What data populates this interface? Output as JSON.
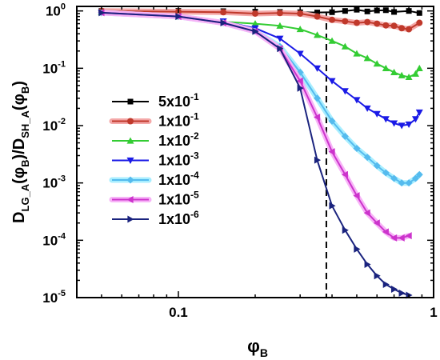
{
  "chart_data": {
    "type": "line",
    "title": "",
    "x_scale": "log",
    "y_scale": "log",
    "xlim": [
      0.04,
      1.0
    ],
    "ylim": [
      1e-05,
      1.2
    ],
    "grid": false,
    "legend_position": "left",
    "xlabel": {
      "base": "φ",
      "sub": "B"
    },
    "ylabel": {
      "p1": "D",
      "s1": "LG_A",
      "p2": "(φ",
      "s2": "B",
      "p3": ")/D",
      "s3": "SH_A",
      "p4": "(φ",
      "s4": "B",
      "p5": ")"
    },
    "x_ticks": [
      {
        "v": 0.1,
        "label": "0.1"
      },
      {
        "v": 1,
        "label": "1"
      }
    ],
    "y_ticks": [
      {
        "v": 1,
        "m": "10",
        "e": "0"
      },
      {
        "v": 0.1,
        "m": "10",
        "e": "-1"
      },
      {
        "v": 0.01,
        "m": "10",
        "e": "-2"
      },
      {
        "v": 0.001,
        "m": "10",
        "e": "-3"
      },
      {
        "v": 0.0001,
        "m": "10",
        "e": "-4"
      },
      {
        "v": 1e-05,
        "m": "10",
        "e": "-5"
      }
    ],
    "reference_line": {
      "x": 0.38,
      "style": "dashed",
      "color": "#000000"
    },
    "series": [
      {
        "name": {
          "m": "5x10",
          "e": "-1"
        },
        "color": "#000000",
        "glow": null,
        "marker": "square",
        "x": [
          0.05,
          0.1,
          0.15,
          0.2,
          0.25,
          0.3,
          0.35,
          0.4,
          0.45,
          0.5,
          0.55,
          0.6,
          0.65,
          0.7,
          0.8,
          0.88
        ],
        "y": [
          1.0,
          1.0,
          0.99,
          0.97,
          0.96,
          0.95,
          0.94,
          0.95,
          1.0,
          1.05,
          0.98,
          1.02,
          1.03,
          0.96,
          1.0,
          0.92
        ]
      },
      {
        "name": {
          "m": "1x10",
          "e": "-1"
        },
        "color": "#c0392b",
        "glow": "#f4a8a8",
        "marker": "circle",
        "x": [
          0.05,
          0.1,
          0.15,
          0.2,
          0.25,
          0.3,
          0.35,
          0.4,
          0.45,
          0.5,
          0.55,
          0.6,
          0.65,
          0.7,
          0.75,
          0.8,
          0.88
        ],
        "y": [
          1.0,
          0.97,
          0.95,
          0.9,
          0.92,
          0.9,
          0.8,
          0.7,
          0.66,
          0.62,
          0.64,
          0.6,
          0.56,
          0.55,
          0.5,
          0.48,
          0.62
        ]
      },
      {
        "name": {
          "m": "1x10",
          "e": "-2"
        },
        "color": "#33cc33",
        "glow": null,
        "marker": "triangle-up",
        "x": [
          0.05,
          0.1,
          0.15,
          0.2,
          0.25,
          0.3,
          0.35,
          0.4,
          0.45,
          0.5,
          0.55,
          0.6,
          0.65,
          0.7,
          0.75,
          0.8,
          0.85,
          0.88
        ],
        "y": [
          0.95,
          0.8,
          0.65,
          0.6,
          0.55,
          0.48,
          0.38,
          0.3,
          0.24,
          0.18,
          0.15,
          0.12,
          0.1,
          0.085,
          0.075,
          0.07,
          0.08,
          0.1
        ]
      },
      {
        "name": {
          "m": "1x10",
          "e": "-3"
        },
        "color": "#1a1ae6",
        "glow": null,
        "marker": "triangle-down",
        "x": [
          0.05,
          0.1,
          0.15,
          0.2,
          0.25,
          0.3,
          0.35,
          0.4,
          0.45,
          0.5,
          0.55,
          0.6,
          0.65,
          0.7,
          0.75,
          0.8,
          0.85,
          0.88
        ],
        "y": [
          0.93,
          0.8,
          0.66,
          0.5,
          0.33,
          0.18,
          0.1,
          0.06,
          0.04,
          0.028,
          0.02,
          0.016,
          0.013,
          0.011,
          0.01,
          0.0105,
          0.013,
          0.017
        ]
      },
      {
        "name": {
          "m": "1x10",
          "e": "-4"
        },
        "color": "#55bbee",
        "glow": "#a8eeff",
        "marker": "diamond",
        "x": [
          0.05,
          0.1,
          0.15,
          0.2,
          0.25,
          0.3,
          0.35,
          0.4,
          0.45,
          0.5,
          0.55,
          0.6,
          0.65,
          0.7,
          0.75,
          0.8,
          0.85,
          0.88
        ],
        "y": [
          0.93,
          0.8,
          0.62,
          0.44,
          0.24,
          0.085,
          0.03,
          0.012,
          0.0065,
          0.004,
          0.0028,
          0.002,
          0.0015,
          0.0012,
          0.001,
          0.001,
          0.0012,
          0.0014
        ]
      },
      {
        "name": {
          "m": "1x10",
          "e": "-5"
        },
        "color": "#cc33cc",
        "glow": "#f7b3f7",
        "marker": "triangle-left",
        "x": [
          0.05,
          0.1,
          0.15,
          0.2,
          0.25,
          0.3,
          0.35,
          0.4,
          0.45,
          0.5,
          0.55,
          0.6,
          0.65,
          0.7,
          0.75,
          0.8
        ],
        "y": [
          0.93,
          0.8,
          0.62,
          0.44,
          0.22,
          0.06,
          0.014,
          0.0035,
          0.0014,
          0.0006,
          0.0003,
          0.0002,
          0.00014,
          0.00011,
          0.00011,
          0.00012
        ]
      },
      {
        "name": {
          "m": "1x10",
          "e": "-6"
        },
        "color": "#1a237e",
        "glow": null,
        "marker": "triangle-right",
        "x": [
          0.05,
          0.1,
          0.15,
          0.2,
          0.25,
          0.3,
          0.35,
          0.4,
          0.45,
          0.5,
          0.55,
          0.6,
          0.65,
          0.7,
          0.75,
          0.8
        ],
        "y": [
          0.93,
          0.8,
          0.62,
          0.44,
          0.22,
          0.045,
          0.0025,
          0.0004,
          0.00015,
          7e-05,
          3.8e-05,
          2.4e-05,
          1.7e-05,
          1.4e-05,
          1.2e-05,
          1.1e-05
        ]
      }
    ]
  }
}
